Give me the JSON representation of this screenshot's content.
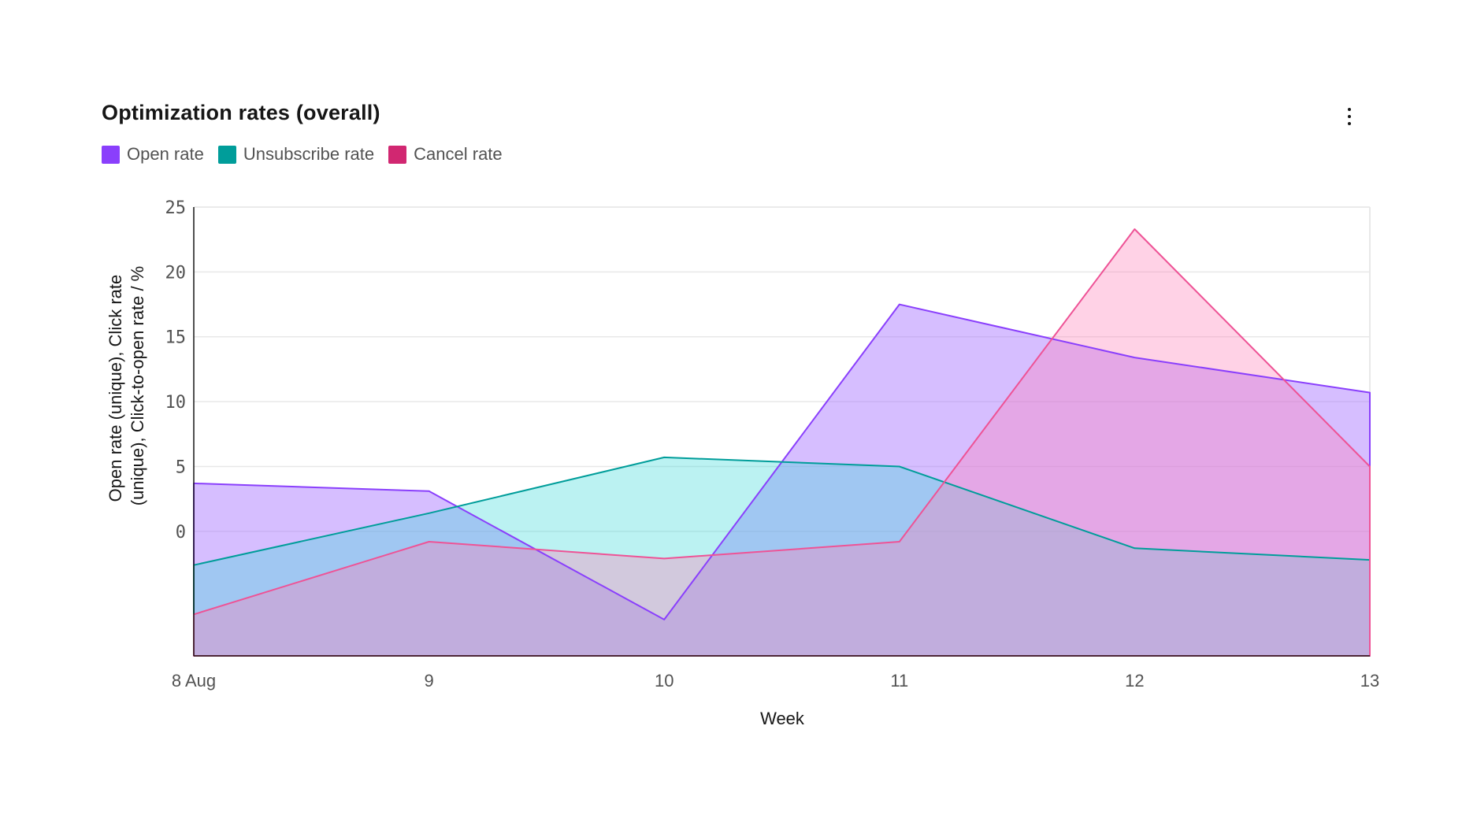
{
  "header": {
    "title": "Optimization rates (overall)",
    "menu_icon": "overflow-menu-vertical-icon"
  },
  "legend": [
    {
      "label": "Open rate",
      "color": "#8a3ffc"
    },
    {
      "label": "Unsubscribe rate",
      "color": "#009d9a"
    },
    {
      "label": "Cancel rate",
      "color": "#d12771"
    }
  ],
  "chart_data": {
    "type": "area",
    "title": "Optimization rates (overall)",
    "xlabel": "Week",
    "ylabel_lines": [
      "Open rate (unique), Click rate",
      "(unique), Click-to-open rate / %"
    ],
    "x_tick_labels": [
      "8 Aug",
      "9",
      "10",
      "11",
      "12",
      "13"
    ],
    "y_tick_labels": [
      "0",
      "5",
      "10",
      "15",
      "20",
      "25"
    ],
    "ylim": [
      -9.6,
      25
    ],
    "grid": true,
    "legend_position": "top-left",
    "series": [
      {
        "name": "Open rate",
        "color": "#8a3ffc",
        "fill": "#a56eff",
        "opacity": 0.45,
        "values": [
          3.7,
          3.1,
          -6.8,
          17.5,
          13.4,
          10.7
        ]
      },
      {
        "name": "Unsubscribe rate",
        "color": "#009d9a",
        "fill": "#3ddbd9",
        "opacity": 0.35,
        "values": [
          -2.6,
          1.4,
          5.7,
          5.0,
          -1.3,
          -2.2
        ]
      },
      {
        "name": "Cancel rate",
        "color": "#ee5396",
        "fill": "#ff7eb6",
        "opacity": 0.35,
        "values": [
          -6.4,
          -0.8,
          -2.1,
          -0.8,
          23.3,
          5.0
        ]
      }
    ]
  }
}
